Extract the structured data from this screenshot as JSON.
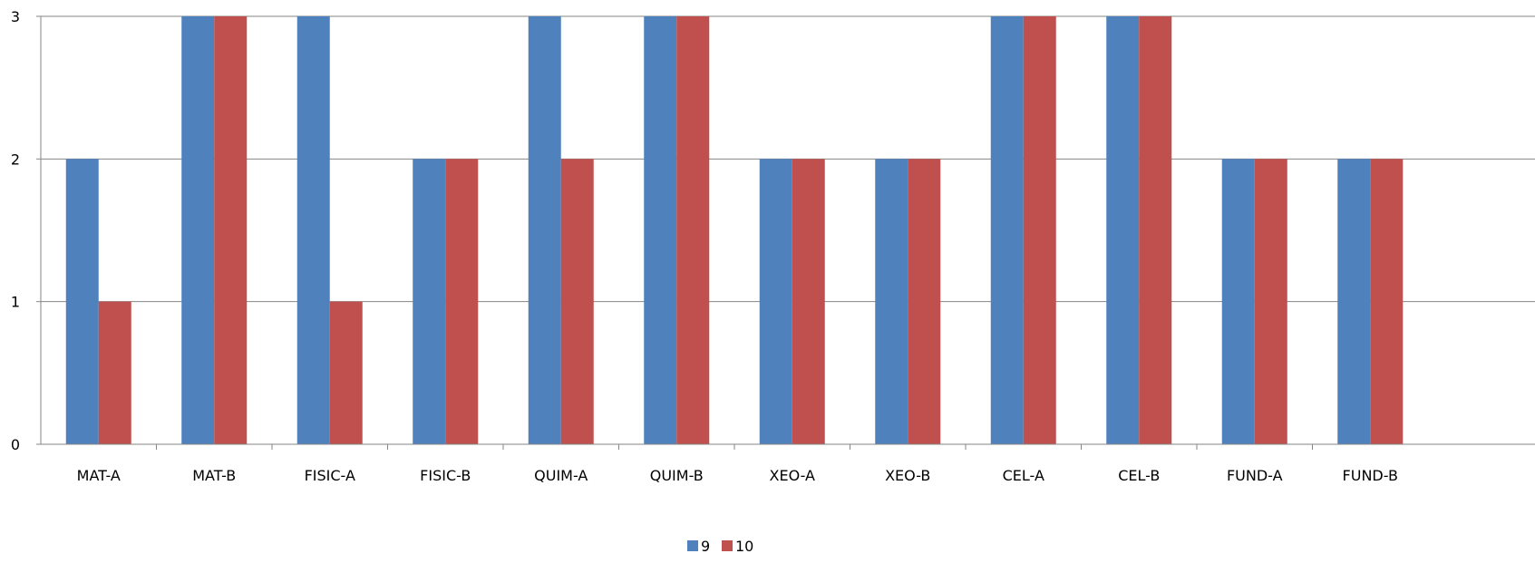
{
  "chart_data": {
    "type": "bar",
    "categories": [
      "MAT-A",
      "MAT-B",
      "FISIC-A",
      "FISIC-B",
      "QUIM-A",
      "QUIM-B",
      "XEO-A",
      "XEO-B",
      "CEL-A",
      "CEL-B",
      "FUND-A",
      "FUND-B"
    ],
    "series": [
      {
        "name": "9",
        "color": "#4F81BD",
        "values": [
          2,
          3,
          3,
          2,
          3,
          3,
          2,
          2,
          3,
          3,
          2,
          2
        ]
      },
      {
        "name": "10",
        "color": "#C0504D",
        "values": [
          1,
          3,
          1,
          2,
          2,
          3,
          2,
          2,
          3,
          3,
          2,
          2
        ]
      }
    ],
    "yticks": [
      "0",
      "1",
      "2",
      "3"
    ],
    "ylim": [
      0,
      3
    ],
    "grid": true,
    "legend_position": "bottom-center",
    "title": "",
    "xlabel": "",
    "ylabel": ""
  }
}
